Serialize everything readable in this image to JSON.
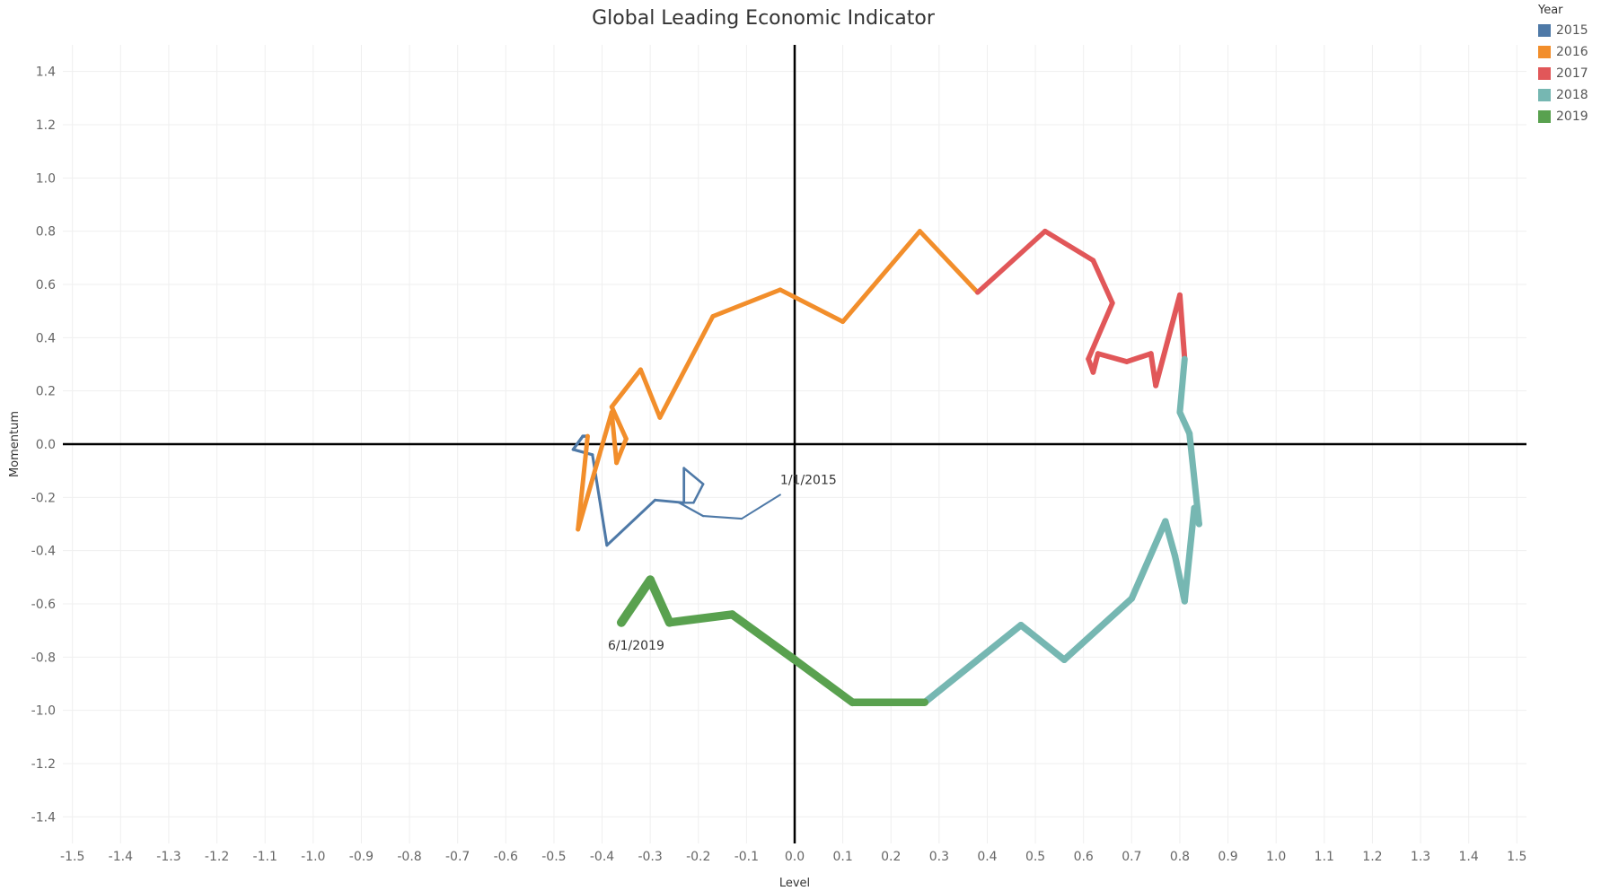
{
  "chart_data": {
    "type": "line",
    "title": "Global Leading Economic Indicator",
    "xlabel": "Level",
    "ylabel": "Momentum",
    "xlim": [
      -1.52,
      1.52
    ],
    "ylim": [
      -1.5,
      1.5
    ],
    "grid": true,
    "legend_placement": "top-right",
    "legend_title": "Year",
    "x_ticks": [
      "-1.5",
      "-1.4",
      "-1.3",
      "-1.2",
      "-1.1",
      "-1.0",
      "-0.9",
      "-0.8",
      "-0.7",
      "-0.6",
      "-0.5",
      "-0.4",
      "-0.3",
      "-0.2",
      "-0.1",
      "0.0",
      "0.1",
      "0.2",
      "0.3",
      "0.4",
      "0.5",
      "0.6",
      "0.7",
      "0.8",
      "0.9",
      "1.0",
      "1.1",
      "1.2",
      "1.3",
      "1.4",
      "1.5"
    ],
    "y_ticks": [
      "1.4",
      "1.2",
      "1.0",
      "0.8",
      "0.6",
      "0.4",
      "0.2",
      "0.0",
      "-0.2",
      "-0.4",
      "-0.6",
      "-0.8",
      "-1.0",
      "-1.2",
      "-1.4"
    ],
    "series": [
      {
        "name": "2015",
        "color": "#4e79a7",
        "points": [
          {
            "x": -0.03,
            "y": -0.19
          },
          {
            "x": -0.11,
            "y": -0.28
          },
          {
            "x": -0.19,
            "y": -0.27
          },
          {
            "x": -0.24,
            "y": -0.22
          },
          {
            "x": -0.21,
            "y": -0.22
          },
          {
            "x": -0.19,
            "y": -0.15
          },
          {
            "x": -0.23,
            "y": -0.09
          },
          {
            "x": -0.23,
            "y": -0.22
          },
          {
            "x": -0.29,
            "y": -0.21
          },
          {
            "x": -0.39,
            "y": -0.38
          },
          {
            "x": -0.42,
            "y": -0.04
          },
          {
            "x": -0.46,
            "y": -0.02
          },
          {
            "x": -0.44,
            "y": 0.03
          },
          {
            "x": -0.43,
            "y": 0.03
          }
        ]
      },
      {
        "name": "2016",
        "color": "#f28e2b",
        "points": [
          {
            "x": -0.43,
            "y": 0.03
          },
          {
            "x": -0.45,
            "y": -0.32
          },
          {
            "x": -0.38,
            "y": 0.12
          },
          {
            "x": -0.37,
            "y": -0.07
          },
          {
            "x": -0.35,
            "y": 0.02
          },
          {
            "x": -0.38,
            "y": 0.14
          },
          {
            "x": -0.32,
            "y": 0.28
          },
          {
            "x": -0.28,
            "y": 0.1
          },
          {
            "x": -0.17,
            "y": 0.48
          },
          {
            "x": -0.03,
            "y": 0.58
          },
          {
            "x": 0.1,
            "y": 0.46
          },
          {
            "x": 0.26,
            "y": 0.8
          },
          {
            "x": 0.38,
            "y": 0.57
          }
        ]
      },
      {
        "name": "2017",
        "color": "#e15759",
        "points": [
          {
            "x": 0.38,
            "y": 0.57
          },
          {
            "x": 0.52,
            "y": 0.8
          },
          {
            "x": 0.62,
            "y": 0.69
          },
          {
            "x": 0.66,
            "y": 0.53
          },
          {
            "x": 0.61,
            "y": 0.32
          },
          {
            "x": 0.62,
            "y": 0.27
          },
          {
            "x": 0.63,
            "y": 0.34
          },
          {
            "x": 0.69,
            "y": 0.31
          },
          {
            "x": 0.74,
            "y": 0.34
          },
          {
            "x": 0.75,
            "y": 0.22
          },
          {
            "x": 0.8,
            "y": 0.56
          },
          {
            "x": 0.81,
            "y": 0.32
          }
        ]
      },
      {
        "name": "2018",
        "color": "#76b7b2",
        "points": [
          {
            "x": 0.81,
            "y": 0.32
          },
          {
            "x": 0.8,
            "y": 0.12
          },
          {
            "x": 0.82,
            "y": 0.04
          },
          {
            "x": 0.84,
            "y": -0.3
          },
          {
            "x": 0.83,
            "y": -0.24
          },
          {
            "x": 0.81,
            "y": -0.59
          },
          {
            "x": 0.79,
            "y": -0.42
          },
          {
            "x": 0.77,
            "y": -0.29
          },
          {
            "x": 0.7,
            "y": -0.58
          },
          {
            "x": 0.56,
            "y": -0.81
          },
          {
            "x": 0.47,
            "y": -0.68
          },
          {
            "x": 0.27,
            "y": -0.97
          }
        ]
      },
      {
        "name": "2019",
        "color": "#59a14f",
        "points": [
          {
            "x": 0.27,
            "y": -0.97
          },
          {
            "x": 0.12,
            "y": -0.97
          },
          {
            "x": 0.0,
            "y": -0.81
          },
          {
            "x": -0.13,
            "y": -0.64
          },
          {
            "x": -0.26,
            "y": -0.67
          },
          {
            "x": -0.3,
            "y": -0.51
          },
          {
            "x": -0.36,
            "y": -0.67
          }
        ]
      }
    ],
    "annotations": [
      {
        "text": "1/1/2015",
        "x": -0.03,
        "y": -0.19
      },
      {
        "text": "6/1/2019",
        "x": -0.36,
        "y": -0.67
      }
    ]
  }
}
